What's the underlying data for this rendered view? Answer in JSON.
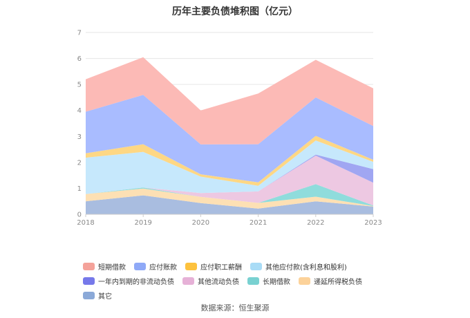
{
  "title": "历年主要负债堆积图（亿元）",
  "source": "数据来源：恒生聚源",
  "chart_data": {
    "type": "area",
    "stacked": true,
    "categories": [
      "2018",
      "2019",
      "2020",
      "2021",
      "2022",
      "2023"
    ],
    "ylim": [
      0,
      7
    ],
    "yticks": [
      "0",
      "1",
      "2",
      "3",
      "4",
      "5",
      "6",
      "7"
    ],
    "grid": true,
    "legend_position": "bottom",
    "series": [
      {
        "name": "其它",
        "color": "#a9bde0",
        "values": [
          0.5,
          0.73,
          0.43,
          0.22,
          0.5,
          0.3
        ]
      },
      {
        "name": "递延所得税负债",
        "color": "#fde0b4",
        "values": [
          0.28,
          0.26,
          0.24,
          0.22,
          0.18,
          0.02
        ]
      },
      {
        "name": "长期借款",
        "color": "#8fdcdc",
        "values": [
          0.0,
          0.04,
          0.0,
          0.0,
          0.48,
          0.02
        ]
      },
      {
        "name": "其他流动负债",
        "color": "#edc8e2",
        "values": [
          0.0,
          0.0,
          0.15,
          0.44,
          1.1,
          0.88
        ]
      },
      {
        "name": "一年内到期的非流动负债",
        "color": "#a0a6f2",
        "values": [
          0.0,
          0.0,
          0.0,
          0.0,
          0.04,
          0.52
        ]
      },
      {
        "name": "其他应付款(含利息和股利)",
        "color": "#c6e8fc",
        "values": [
          1.4,
          1.37,
          0.63,
          0.22,
          0.54,
          0.28
        ]
      },
      {
        "name": "应付职工薪酬",
        "color": "#fed784",
        "values": [
          0.17,
          0.3,
          0.09,
          0.13,
          0.18,
          0.08
        ]
      },
      {
        "name": "应付账款",
        "color": "#a9bcff",
        "values": [
          1.6,
          1.9,
          1.15,
          1.47,
          1.48,
          1.3
        ]
      },
      {
        "name": "短期借款",
        "color": "#fcbab6",
        "values": [
          1.25,
          1.45,
          1.31,
          1.95,
          1.45,
          1.45
        ]
      }
    ]
  },
  "legend": [
    {
      "label": "短期借款",
      "color": "#f4a29a"
    },
    {
      "label": "应付账款",
      "color": "#8fa9f7"
    },
    {
      "label": "应付职工薪酬",
      "color": "#fdc23e"
    },
    {
      "label": "其他应付款(含利息和股利)",
      "color": "#a9dcf6"
    },
    {
      "label": "一年内到期的非流动负债",
      "color": "#7679ea"
    },
    {
      "label": "其他流动负债",
      "color": "#e6b1d7"
    },
    {
      "label": "长期借款",
      "color": "#79d1d1"
    },
    {
      "label": "递延所得税负债",
      "color": "#fcd29a"
    },
    {
      "label": "其它",
      "color": "#8ba9d8"
    }
  ]
}
